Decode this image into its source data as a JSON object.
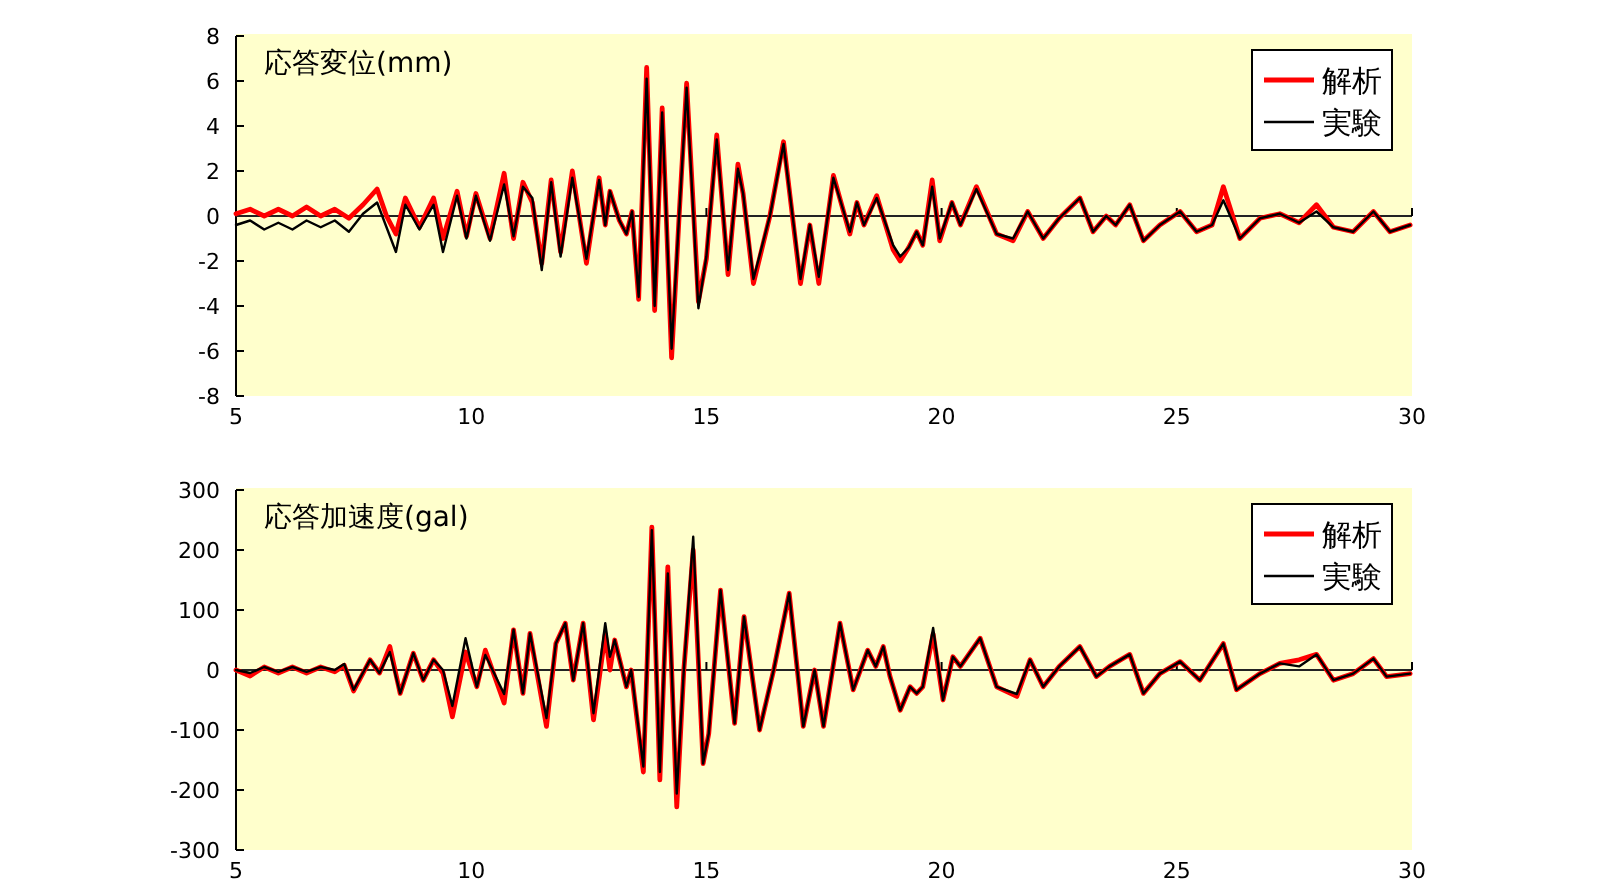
{
  "chart_data": [
    {
      "type": "line",
      "title": "応答変位(mm)",
      "xlim": [
        5,
        30
      ],
      "ylim": [
        -8,
        8
      ],
      "xticks": [
        5,
        10,
        15,
        20,
        25,
        30
      ],
      "yticks": [
        -8,
        -6,
        -4,
        -2,
        0,
        2,
        4,
        6,
        8
      ],
      "legend": "top right",
      "x": [
        5.0,
        5.3,
        5.6,
        5.9,
        6.2,
        6.5,
        6.8,
        7.1,
        7.4,
        7.7,
        8.0,
        8.2,
        8.4,
        8.6,
        8.9,
        9.2,
        9.4,
        9.7,
        9.9,
        10.1,
        10.4,
        10.7,
        10.9,
        11.1,
        11.3,
        11.5,
        11.7,
        11.9,
        12.15,
        12.45,
        12.72,
        12.85,
        12.95,
        13.15,
        13.3,
        13.42,
        13.56,
        13.73,
        13.9,
        14.06,
        14.26,
        14.42,
        14.58,
        14.83,
        15.0,
        15.22,
        15.46,
        15.67,
        15.78,
        16.0,
        16.35,
        16.64,
        17.0,
        17.2,
        17.39,
        17.7,
        18.05,
        18.2,
        18.35,
        18.62,
        18.97,
        19.12,
        19.3,
        19.47,
        19.6,
        19.8,
        19.96,
        20.22,
        20.4,
        20.74,
        21.17,
        21.52,
        21.83,
        22.16,
        22.5,
        22.94,
        23.22,
        23.5,
        23.7,
        24.0,
        24.29,
        24.64,
        25.07,
        25.42,
        25.75,
        25.99,
        26.34,
        26.77,
        27.19,
        27.6,
        27.97,
        28.33,
        28.75,
        29.18,
        29.53,
        29.96
      ],
      "series": [
        {
          "name": "解析",
          "color": "#ff0000",
          "values": [
            0.1,
            0.3,
            0.0,
            0.3,
            0.0,
            0.4,
            0.0,
            0.3,
            -0.1,
            0.5,
            1.2,
            0.0,
            -0.8,
            0.8,
            -0.5,
            0.8,
            -1.0,
            1.1,
            -0.9,
            1.0,
            -1.0,
            1.9,
            -1.0,
            1.5,
            0.6,
            -2.1,
            1.6,
            -1.6,
            2.0,
            -2.1,
            1.7,
            -0.4,
            1.1,
            -0.2,
            -0.8,
            0.2,
            -3.7,
            6.6,
            -4.2,
            4.8,
            -6.3,
            0.0,
            5.9,
            -3.8,
            -1.9,
            3.6,
            -2.6,
            2.3,
            1.0,
            -3.0,
            0.0,
            3.3,
            -3.0,
            -0.4,
            -3.0,
            1.8,
            -0.8,
            0.6,
            -0.4,
            0.9,
            -1.5,
            -2.0,
            -1.4,
            -0.7,
            -1.3,
            1.6,
            -1.1,
            0.6,
            -0.4,
            1.3,
            -0.8,
            -1.1,
            0.2,
            -1.0,
            -0.1,
            0.8,
            -0.7,
            0.0,
            -0.4,
            0.5,
            -1.1,
            -0.4,
            0.2,
            -0.7,
            -0.4,
            1.3,
            -1.0,
            -0.1,
            0.1,
            -0.3,
            0.5,
            -0.5,
            -0.7,
            0.2,
            -0.7,
            -0.4
          ]
        },
        {
          "name": "実験",
          "color": "#000000",
          "values": [
            -0.4,
            -0.2,
            -0.6,
            -0.3,
            -0.6,
            -0.2,
            -0.5,
            -0.2,
            -0.7,
            0.1,
            0.6,
            -0.5,
            -1.6,
            0.5,
            -0.6,
            0.5,
            -1.6,
            0.9,
            -1.0,
            0.9,
            -1.1,
            1.4,
            -0.9,
            1.3,
            0.8,
            -2.4,
            1.5,
            -1.8,
            1.7,
            -1.9,
            1.6,
            -0.4,
            1.1,
            -0.2,
            -0.8,
            0.2,
            -3.6,
            6.1,
            -4.0,
            4.6,
            -5.9,
            0.0,
            5.7,
            -4.1,
            -1.8,
            3.4,
            -2.4,
            2.1,
            1.0,
            -2.8,
            0.0,
            3.2,
            -2.8,
            -0.4,
            -2.7,
            1.7,
            -0.7,
            0.6,
            -0.4,
            0.8,
            -1.3,
            -1.8,
            -1.4,
            -0.7,
            -1.3,
            1.3,
            -1.0,
            0.6,
            -0.4,
            1.2,
            -0.8,
            -1.0,
            0.2,
            -1.0,
            -0.1,
            0.8,
            -0.7,
            0.0,
            -0.4,
            0.5,
            -1.1,
            -0.4,
            0.2,
            -0.7,
            -0.4,
            0.7,
            -1.0,
            -0.1,
            0.1,
            -0.3,
            0.2,
            -0.5,
            -0.7,
            0.2,
            -0.7,
            -0.4
          ]
        }
      ]
    },
    {
      "type": "line",
      "title": "応答加速度(gal)",
      "xlim": [
        5,
        30
      ],
      "ylim": [
        -300,
        300
      ],
      "xticks": [
        5,
        10,
        15,
        20,
        25,
        30
      ],
      "yticks": [
        -300,
        -200,
        -100,
        0,
        100,
        200,
        300
      ],
      "legend": "top right",
      "x": [
        5.0,
        5.3,
        5.6,
        5.9,
        6.2,
        6.5,
        6.8,
        7.1,
        7.3,
        7.5,
        7.85,
        8.05,
        8.27,
        8.49,
        8.77,
        8.98,
        9.2,
        9.4,
        9.6,
        9.88,
        10.12,
        10.3,
        10.7,
        10.9,
        11.1,
        11.25,
        11.6,
        11.8,
        12.0,
        12.17,
        12.38,
        12.6,
        12.85,
        12.95,
        13.05,
        13.3,
        13.4,
        13.66,
        13.84,
        14.01,
        14.18,
        14.37,
        14.52,
        14.72,
        14.93,
        15.05,
        15.3,
        15.6,
        15.8,
        16.13,
        16.43,
        16.76,
        17.06,
        17.3,
        17.49,
        17.84,
        18.12,
        18.43,
        18.6,
        18.76,
        18.9,
        19.12,
        19.33,
        19.47,
        19.6,
        19.82,
        20.03,
        20.24,
        20.4,
        20.82,
        21.17,
        21.6,
        21.88,
        22.16,
        22.5,
        22.94,
        23.29,
        23.57,
        24.0,
        24.29,
        24.64,
        25.07,
        25.49,
        25.99,
        26.27,
        26.77,
        27.19,
        27.6,
        27.97,
        28.33,
        28.75,
        29.18,
        29.46,
        29.96
      ],
      "series": [
        {
          "name": "解析",
          "color": "#ff0000",
          "values": [
            0,
            -10,
            5,
            -5,
            5,
            -5,
            5,
            -3,
            8,
            -35,
            17,
            -5,
            39,
            -39,
            28,
            -17,
            17,
            -5,
            -78,
            30,
            -28,
            33,
            -55,
            67,
            -39,
            61,
            -94,
            44,
            78,
            -17,
            78,
            -83,
            60,
            0,
            50,
            -28,
            0,
            -170,
            238,
            -183,
            172,
            -228,
            0,
            200,
            -156,
            -106,
            133,
            -89,
            89,
            -100,
            0,
            128,
            -94,
            0,
            -94,
            78,
            -33,
            33,
            6,
            39,
            -10,
            -67,
            -28,
            -39,
            -28,
            60,
            -50,
            22,
            6,
            53,
            -28,
            -44,
            17,
            -28,
            6,
            39,
            -11,
            6,
            26,
            -39,
            -6,
            14,
            -17,
            44,
            -33,
            -6,
            11,
            17,
            26,
            -17,
            -6,
            19,
            -11,
            -6
          ]
        },
        {
          "name": "実験",
          "color": "#000000",
          "values": [
            0,
            -5,
            5,
            -3,
            5,
            -3,
            5,
            0,
            10,
            -33,
            17,
            -5,
            30,
            -39,
            28,
            -17,
            17,
            0,
            -60,
            53,
            -28,
            25,
            -40,
            67,
            -39,
            61,
            -80,
            44,
            78,
            -17,
            78,
            -72,
            78,
            22,
            50,
            -28,
            0,
            -161,
            233,
            -170,
            161,
            -206,
            0,
            222,
            -156,
            -106,
            133,
            -89,
            89,
            -100,
            0,
            128,
            -94,
            0,
            -94,
            78,
            -33,
            33,
            6,
            39,
            -10,
            -67,
            -28,
            -39,
            -28,
            70,
            -50,
            22,
            6,
            53,
            -28,
            -40,
            17,
            -28,
            6,
            39,
            -11,
            6,
            26,
            -39,
            -6,
            14,
            -17,
            44,
            -33,
            -6,
            11,
            6,
            26,
            -17,
            -6,
            19,
            -11,
            -6
          ]
        }
      ]
    }
  ]
}
